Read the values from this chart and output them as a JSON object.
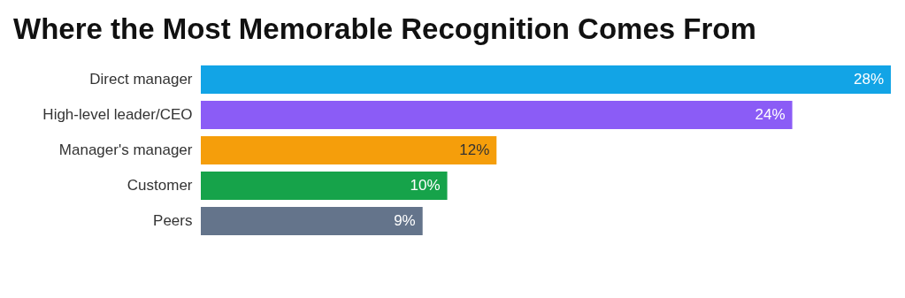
{
  "chart_data": {
    "type": "bar",
    "orientation": "horizontal",
    "title": "Where the Most Memorable Recognition Comes From",
    "categories": [
      "Direct manager",
      "High-level leader/CEO",
      "Manager's manager",
      "Customer",
      "Peers"
    ],
    "values": [
      28,
      24,
      12,
      10,
      9
    ],
    "colors": [
      "#12a4e6",
      "#8b5cf6",
      "#f59e0b",
      "#16a34a",
      "#64748b"
    ],
    "value_labels": [
      "28%",
      "24%",
      "12%",
      "10%",
      "9%"
    ]
  }
}
